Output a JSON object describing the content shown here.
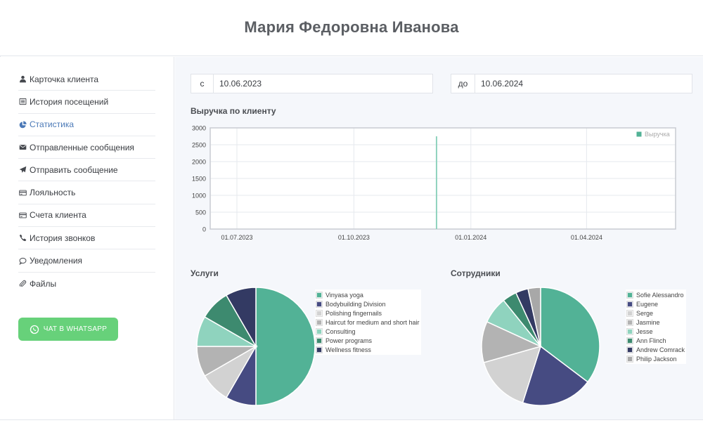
{
  "header": {
    "title": "Мария Федоровна Иванова"
  },
  "sidebar": {
    "items": [
      {
        "label": "Карточка клиента",
        "icon": "user-icon",
        "active": false
      },
      {
        "label": "История посещений",
        "icon": "list-icon",
        "active": false
      },
      {
        "label": "Статистика",
        "icon": "pie-chart-icon",
        "active": true
      },
      {
        "label": "Отправленные сообщения",
        "icon": "envelope-icon",
        "active": false
      },
      {
        "label": "Отправить сообщение",
        "icon": "paper-plane-icon",
        "active": false
      },
      {
        "label": "Лояльность",
        "icon": "card-icon",
        "active": false
      },
      {
        "label": "Счета клиента",
        "icon": "card-icon",
        "active": false
      },
      {
        "label": "История звонков",
        "icon": "phone-icon",
        "active": false
      },
      {
        "label": "Уведомления",
        "icon": "comment-icon",
        "active": false
      },
      {
        "label": "Файлы",
        "icon": "paperclip-icon",
        "active": false
      }
    ],
    "whatsapp_label": "ЧАТ В WHATSAPP"
  },
  "filters": {
    "from_prefix": "с",
    "from_value": "10.06.2023",
    "to_prefix": "до",
    "to_value": "10.06.2024"
  },
  "revenue": {
    "title": "Выручка по клиенту"
  },
  "services": {
    "title": "Услуги"
  },
  "staff": {
    "title": "Сотрудники"
  },
  "colors": {
    "accent": "#4b79b7",
    "whatsapp": "#67d17a",
    "revenue_line": "#8fd3be"
  },
  "chart_data": [
    {
      "type": "line",
      "legend_position": "top-right",
      "series": [
        {
          "name": "Выручка",
          "x": [
            "2023-12-05"
          ],
          "values": [
            2750
          ]
        }
      ],
      "x_ticks": [
        "01.07.2023",
        "01.10.2023",
        "01.01.2024",
        "01.04.2024"
      ],
      "x_tick_dates": [
        "2023-07-01",
        "2023-10-01",
        "2024-01-01",
        "2024-04-01"
      ],
      "xlim": [
        "2023-06-10",
        "2024-06-10"
      ],
      "ylim": [
        0,
        3000
      ],
      "y_ticks": [
        0,
        500,
        1000,
        1500,
        2000,
        2500,
        3000
      ],
      "grid": true
    },
    {
      "type": "pie",
      "legend_position": "right",
      "categories": [
        "Vinyasa yoga",
        "Bodybuilding Division",
        "Polishing fingernails",
        "Haircut for medium and short hair",
        "Consulting",
        "Power programs",
        "Wellness fitness"
      ],
      "values": [
        50,
        8.33,
        8.33,
        8.33,
        8.33,
        8.34,
        8.34
      ],
      "colors": [
        "#52b296",
        "#464b82",
        "#d2d2d2",
        "#b3b3b3",
        "#8fd3be",
        "#3d8a6f",
        "#333a63"
      ]
    },
    {
      "type": "pie",
      "legend_position": "right",
      "categories": [
        "Sofie Alessandro",
        "Eugene",
        "Serge",
        "Jasmine",
        "Jesse",
        "Ann Flinch",
        "Andrew Comrack",
        "Philip Jackson"
      ],
      "values": [
        36,
        20,
        16,
        11.5,
        7.5,
        4,
        3.5,
        3.5
      ],
      "colors": [
        "#52b296",
        "#464b82",
        "#d2d2d2",
        "#b3b3b3",
        "#8fd3be",
        "#3d8a6f",
        "#333a63",
        "#a8a8a8"
      ]
    }
  ]
}
